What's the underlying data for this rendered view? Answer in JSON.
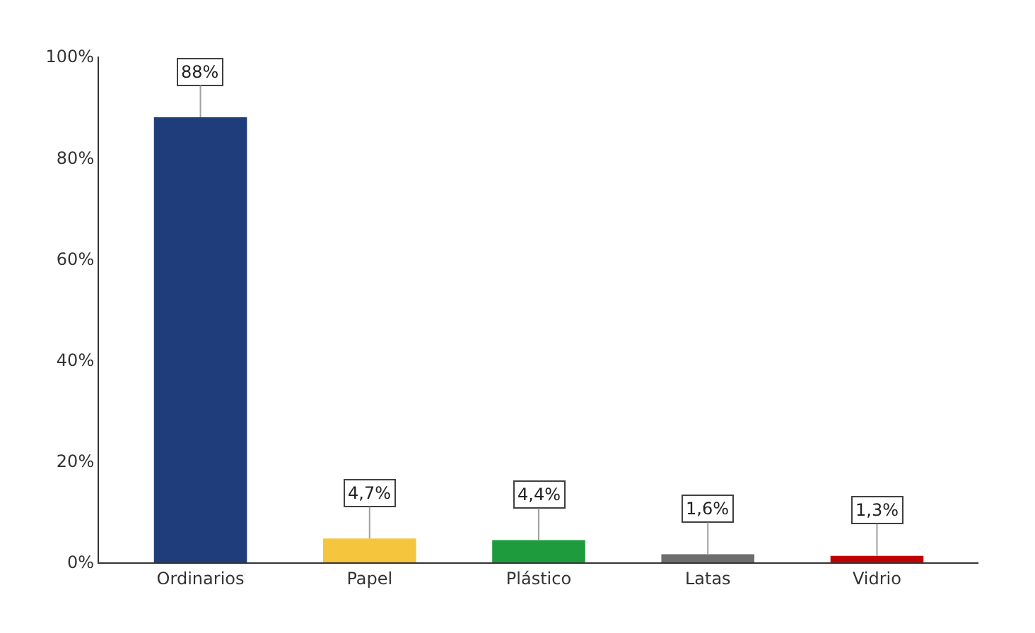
{
  "chart_data": {
    "type": "bar",
    "categories": [
      "Ordinarios",
      "Papel",
      "Plástico",
      "Latas",
      "Vidrio"
    ],
    "values": [
      88,
      4.7,
      4.4,
      1.6,
      1.3
    ],
    "colors": [
      "#1f3d7a",
      "#f5c53d",
      "#1e9b3c",
      "#6d6d6d",
      "#c00000"
    ],
    "value_labels": [
      "88%",
      "4,7%",
      "4,4%",
      "1,6%",
      "1,3%"
    ],
    "ylim": [
      0,
      100
    ],
    "yticks": [
      {
        "value": 0,
        "label": "0%"
      },
      {
        "value": 20,
        "label": "20%"
      },
      {
        "value": 40,
        "label": "40%"
      },
      {
        "value": 60,
        "label": "60%"
      },
      {
        "value": 80,
        "label": "80%"
      },
      {
        "value": 100,
        "label": "100%"
      }
    ]
  }
}
